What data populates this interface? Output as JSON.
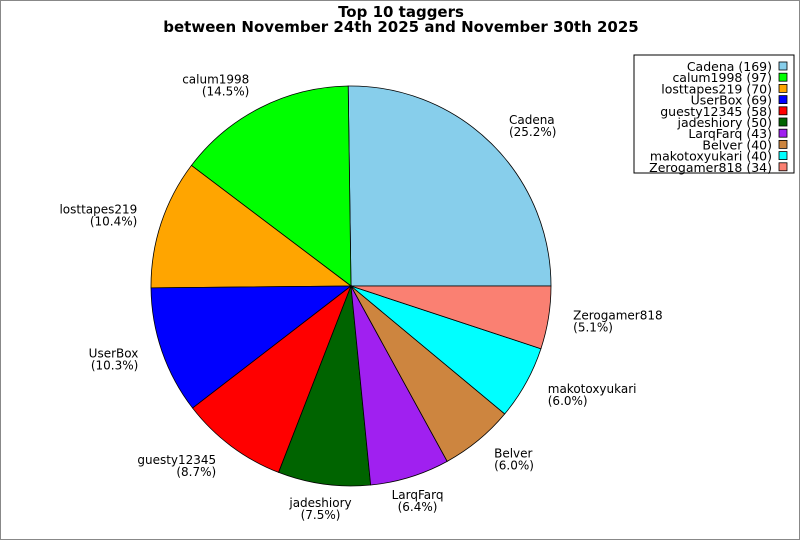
{
  "chart_data": {
    "type": "pie",
    "title": "Top 10 taggers",
    "subtitle": "between November 24th 2025 and November 30th 2025",
    "legend_position": "top-right",
    "start_angle_deg": 0,
    "direction": "counterclockwise",
    "slices": [
      {
        "label": "Cadena",
        "value": 169,
        "percent": "25.2%",
        "color": "#87ceeb"
      },
      {
        "label": "calum1998",
        "value": 97,
        "percent": "14.5%",
        "color": "#00ff00"
      },
      {
        "label": "losttapes219",
        "value": 70,
        "percent": "10.4%",
        "color": "#ffa500"
      },
      {
        "label": "UserBox",
        "value": 69,
        "percent": "10.3%",
        "color": "#0000ff"
      },
      {
        "label": "guesty12345",
        "value": 58,
        "percent": "8.7%",
        "color": "#ff0000"
      },
      {
        "label": "jadeshiory",
        "value": 50,
        "percent": "7.5%",
        "color": "#006400"
      },
      {
        "label": "LarqFarq",
        "value": 43,
        "percent": "6.4%",
        "color": "#a020f0"
      },
      {
        "label": "Belver",
        "value": 40,
        "percent": "6.0%",
        "color": "#cd853f"
      },
      {
        "label": "makotoxyukari",
        "value": 40,
        "percent": "6.0%",
        "color": "#00ffff"
      },
      {
        "label": "Zerogamer818",
        "value": 34,
        "percent": "5.1%",
        "color": "#fa8072"
      }
    ]
  }
}
